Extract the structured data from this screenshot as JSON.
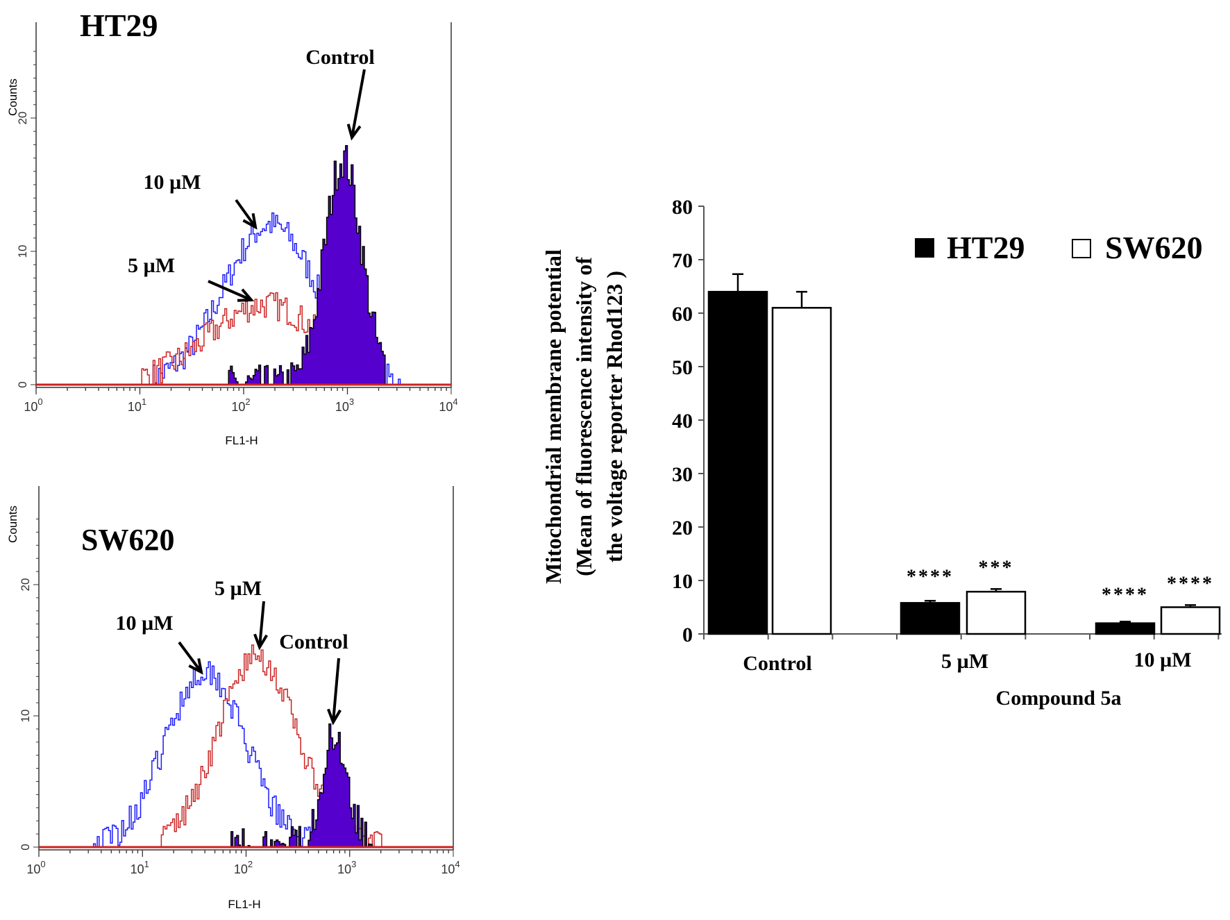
{
  "chart_data": [
    {
      "type": "histogram",
      "title": "HT29",
      "xlabel": "FL1-H",
      "ylabel": "Counts",
      "xscale": "log",
      "xlim": [
        1,
        10000
      ],
      "ylim": [
        0,
        25
      ],
      "xticks": [
        "10^0",
        "10^1",
        "10^2",
        "10^3",
        "10^4"
      ],
      "yticks": [
        "0",
        "10",
        "20"
      ],
      "series": [
        {
          "name": "10 µM",
          "color": "#1a1aff",
          "peak_log10": 2.25,
          "spread": 0.45,
          "peak_count": 12,
          "range_log10": [
            1.1,
            3.5
          ]
        },
        {
          "name": "5 µM",
          "color": "#cc2222",
          "peak_log10": 2.2,
          "spread": 0.55,
          "peak_count": 6,
          "range_log10": [
            1.0,
            3.3
          ]
        },
        {
          "name": "Control",
          "color": "#5500cc",
          "filled": true,
          "peak_log10": 2.95,
          "spread": 0.18,
          "peak_count": 17,
          "range_log10": [
            1.85,
            3.35
          ]
        }
      ],
      "annotations": [
        "Control",
        "10 µM",
        "5 µM"
      ]
    },
    {
      "type": "histogram",
      "title": "SW620",
      "xlabel": "FL1-H",
      "ylabel": "Counts",
      "xscale": "log",
      "xlim": [
        1,
        10000
      ],
      "ylim": [
        0,
        25
      ],
      "xticks": [
        "10^0",
        "10^1",
        "10^2",
        "10^3",
        "10^4"
      ],
      "yticks": [
        "0",
        "10",
        "20"
      ],
      "series": [
        {
          "name": "10 µM",
          "color": "#1a1aff",
          "peak_log10": 1.6,
          "spread": 0.38,
          "peak_count": 13.5,
          "range_log10": [
            0.5,
            3.0
          ]
        },
        {
          "name": "5 µM",
          "color": "#cc2222",
          "peak_log10": 2.1,
          "spread": 0.38,
          "peak_count": 14.5,
          "range_log10": [
            1.1,
            3.3
          ]
        },
        {
          "name": "Control",
          "color": "#5500cc",
          "filled": true,
          "peak_log10": 2.85,
          "spread": 0.13,
          "peak_count": 8.5,
          "range_log10": [
            1.85,
            3.25
          ]
        }
      ],
      "annotations": [
        "Control",
        "5 µM",
        "10 µM"
      ]
    },
    {
      "type": "bar",
      "title": "",
      "xlabel": "Compound 5a",
      "ylabel_lines": [
        "Mitochondrial membrane potential",
        "(Mean of fluorescence intensity of",
        "the voltage reporter Rhod123 )"
      ],
      "categories": [
        "Control",
        "5 µM",
        "10 µM"
      ],
      "ylim": [
        0,
        80
      ],
      "yticks": [
        "0",
        "10",
        "20",
        "30",
        "40",
        "50",
        "60",
        "70",
        "80"
      ],
      "legend_position": "top-right",
      "series": [
        {
          "name": "HT29",
          "color": "#000000",
          "values": [
            64,
            5.8,
            2.0
          ],
          "errors": [
            3.3,
            0.4,
            0.3
          ],
          "significance": [
            "",
            "****",
            "****"
          ]
        },
        {
          "name": "SW620",
          "color": "#ffffff",
          "values": [
            61,
            7.9,
            5.0
          ],
          "errors": [
            3.0,
            0.5,
            0.4
          ],
          "significance": [
            "",
            "***",
            "****"
          ]
        }
      ]
    }
  ]
}
